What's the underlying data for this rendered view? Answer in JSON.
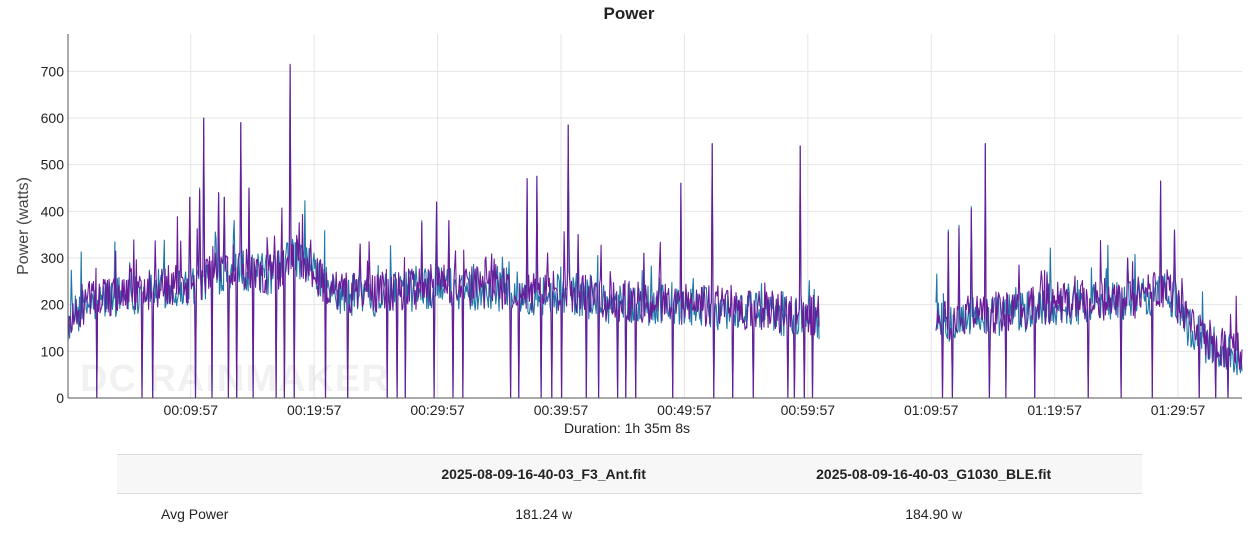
{
  "watermark": "DC RAINMAKER",
  "chart_data": {
    "type": "line",
    "title": "Power",
    "xlabel": "Duration: 1h 35m 8s",
    "ylabel": "Power (watts)",
    "x_unit": "seconds",
    "xlim": [
      0,
      5708
    ],
    "ylim": [
      0,
      780
    ],
    "y_ticks": [
      0,
      100,
      200,
      300,
      400,
      500,
      600,
      700
    ],
    "x_ticks": [
      {
        "value": 597,
        "label": "00:09:57"
      },
      {
        "value": 1197,
        "label": "00:19:57"
      },
      {
        "value": 1797,
        "label": "00:29:57"
      },
      {
        "value": 2397,
        "label": "00:39:57"
      },
      {
        "value": 2997,
        "label": "00:49:57"
      },
      {
        "value": 3597,
        "label": "00:59:57"
      },
      {
        "value": 4197,
        "label": "01:09:57"
      },
      {
        "value": 4797,
        "label": "01:19:57"
      },
      {
        "value": 5397,
        "label": "01:29:57"
      }
    ],
    "grid": true,
    "legend": "none",
    "series": [
      {
        "color": "#1f77a8",
        "segments": [
          {
            "x_start": 0,
            "x_end": 3655
          },
          {
            "x_start": 4220,
            "x_end": 5708
          }
        ],
        "baseline": [
          [
            0,
            160
          ],
          [
            100,
            200
          ],
          [
            250,
            220
          ],
          [
            400,
            230
          ],
          [
            600,
            240
          ],
          [
            800,
            280
          ],
          [
            1000,
            260
          ],
          [
            1100,
            310
          ],
          [
            1300,
            220
          ],
          [
            1500,
            220
          ],
          [
            1700,
            230
          ],
          [
            1800,
            240
          ],
          [
            1900,
            235
          ],
          [
            2100,
            230
          ],
          [
            2300,
            220
          ],
          [
            2450,
            225
          ],
          [
            2600,
            205
          ],
          [
            2800,
            200
          ],
          [
            3000,
            195
          ],
          [
            3200,
            190
          ],
          [
            3400,
            180
          ],
          [
            3600,
            175
          ],
          [
            3655,
            170
          ]
        ],
        "baseline2": [
          [
            4220,
            160
          ],
          [
            4400,
            175
          ],
          [
            4600,
            180
          ],
          [
            4800,
            200
          ],
          [
            5000,
            205
          ],
          [
            5200,
            210
          ],
          [
            5350,
            230
          ],
          [
            5450,
            150
          ],
          [
            5550,
            110
          ],
          [
            5708,
            90
          ]
        ],
        "peaks": [
          [
            300,
            290
          ],
          [
            590,
            430
          ],
          [
            640,
            450
          ],
          [
            660,
            600
          ],
          [
            730,
            440
          ],
          [
            760,
            430
          ],
          [
            840,
            590
          ],
          [
            880,
            450
          ],
          [
            900,
            470
          ],
          [
            1080,
            710
          ],
          [
            1420,
            330
          ],
          [
            1720,
            380
          ],
          [
            1790,
            420
          ],
          [
            1850,
            380
          ],
          [
            2230,
            470
          ],
          [
            2280,
            475
          ],
          [
            2430,
            585
          ],
          [
            2480,
            350
          ],
          [
            2800,
            310
          ],
          [
            2980,
            460
          ],
          [
            3130,
            545
          ],
          [
            3560,
            540
          ],
          [
            4280,
            360
          ],
          [
            4330,
            370
          ],
          [
            4390,
            410
          ],
          [
            4460,
            545
          ],
          [
            4760,
            270
          ],
          [
            5150,
            300
          ],
          [
            5310,
            465
          ],
          [
            5380,
            360
          ]
        ],
        "drops": [
          [
            140,
            0
          ],
          [
            360,
            0
          ],
          [
            410,
            0
          ],
          [
            620,
            0
          ],
          [
            700,
            0
          ],
          [
            780,
            0
          ],
          [
            820,
            0
          ],
          [
            900,
            0
          ],
          [
            1010,
            0
          ],
          [
            1050,
            0
          ],
          [
            1100,
            0
          ],
          [
            1250,
            0
          ],
          [
            1360,
            0
          ],
          [
            1550,
            0
          ],
          [
            1600,
            0
          ],
          [
            1640,
            0
          ],
          [
            1780,
            0
          ],
          [
            1870,
            0
          ],
          [
            1920,
            0
          ],
          [
            2150,
            0
          ],
          [
            2190,
            0
          ],
          [
            2300,
            0
          ],
          [
            2350,
            0
          ],
          [
            2400,
            0
          ],
          [
            2520,
            0
          ],
          [
            2580,
            0
          ],
          [
            2670,
            0
          ],
          [
            2710,
            0
          ],
          [
            2760,
            0
          ],
          [
            2940,
            0
          ],
          [
            3140,
            0
          ],
          [
            3230,
            0
          ],
          [
            3330,
            0
          ],
          [
            3500,
            0
          ],
          [
            3530,
            0
          ],
          [
            3580,
            0
          ],
          [
            3620,
            0
          ],
          [
            4250,
            0
          ],
          [
            4300,
            0
          ],
          [
            4480,
            0
          ],
          [
            4560,
            0
          ],
          [
            4700,
            0
          ],
          [
            4960,
            0
          ],
          [
            5120,
            0
          ],
          [
            5270,
            0
          ],
          [
            5500,
            0
          ],
          [
            5580,
            0
          ],
          [
            5640,
            0
          ]
        ]
      },
      {
        "color": "#6a1b9a",
        "segments": [
          {
            "x_start": 0,
            "x_end": 3655
          },
          {
            "x_start": 4220,
            "x_end": 5708
          }
        ],
        "baseline": [
          [
            0,
            165
          ],
          [
            100,
            205
          ],
          [
            250,
            225
          ],
          [
            400,
            235
          ],
          [
            600,
            245
          ],
          [
            800,
            285
          ],
          [
            1000,
            265
          ],
          [
            1100,
            315
          ],
          [
            1300,
            225
          ],
          [
            1500,
            225
          ],
          [
            1700,
            235
          ],
          [
            1800,
            245
          ],
          [
            1900,
            240
          ],
          [
            2100,
            235
          ],
          [
            2300,
            225
          ],
          [
            2450,
            230
          ],
          [
            2600,
            210
          ],
          [
            2800,
            205
          ],
          [
            3000,
            200
          ],
          [
            3200,
            195
          ],
          [
            3400,
            185
          ],
          [
            3600,
            180
          ],
          [
            3655,
            175
          ]
        ],
        "baseline2": [
          [
            4220,
            165
          ],
          [
            4400,
            180
          ],
          [
            4600,
            185
          ],
          [
            4800,
            205
          ],
          [
            5000,
            210
          ],
          [
            5200,
            215
          ],
          [
            5350,
            235
          ],
          [
            5450,
            155
          ],
          [
            5550,
            115
          ],
          [
            5708,
            95
          ]
        ],
        "peaks": [
          [
            300,
            285
          ],
          [
            590,
            430
          ],
          [
            640,
            445
          ],
          [
            660,
            600
          ],
          [
            730,
            440
          ],
          [
            760,
            430
          ],
          [
            840,
            590
          ],
          [
            880,
            450
          ],
          [
            900,
            465
          ],
          [
            1080,
            715
          ],
          [
            1420,
            330
          ],
          [
            1720,
            375
          ],
          [
            1790,
            420
          ],
          [
            1850,
            380
          ],
          [
            2230,
            470
          ],
          [
            2280,
            475
          ],
          [
            2430,
            585
          ],
          [
            2480,
            350
          ],
          [
            2800,
            310
          ],
          [
            2980,
            460
          ],
          [
            3130,
            545
          ],
          [
            3560,
            540
          ],
          [
            4280,
            355
          ],
          [
            4330,
            365
          ],
          [
            4390,
            405
          ],
          [
            4460,
            545
          ],
          [
            4760,
            265
          ],
          [
            5150,
            300
          ],
          [
            5310,
            465
          ],
          [
            5380,
            360
          ]
        ],
        "drops": [
          [
            140,
            0
          ],
          [
            360,
            0
          ],
          [
            410,
            0
          ],
          [
            620,
            0
          ],
          [
            700,
            0
          ],
          [
            780,
            0
          ],
          [
            820,
            0
          ],
          [
            900,
            0
          ],
          [
            1010,
            0
          ],
          [
            1050,
            0
          ],
          [
            1100,
            0
          ],
          [
            1250,
            0
          ],
          [
            1360,
            0
          ],
          [
            1550,
            0
          ],
          [
            1600,
            0
          ],
          [
            1640,
            0
          ],
          [
            1780,
            0
          ],
          [
            1870,
            0
          ],
          [
            1920,
            0
          ],
          [
            2150,
            0
          ],
          [
            2190,
            0
          ],
          [
            2300,
            0
          ],
          [
            2350,
            0
          ],
          [
            2400,
            0
          ],
          [
            2520,
            0
          ],
          [
            2580,
            0
          ],
          [
            2670,
            0
          ],
          [
            2710,
            0
          ],
          [
            2760,
            0
          ],
          [
            2940,
            0
          ],
          [
            3140,
            0
          ],
          [
            3230,
            0
          ],
          [
            3330,
            0
          ],
          [
            3500,
            0
          ],
          [
            3530,
            0
          ],
          [
            3580,
            0
          ],
          [
            3620,
            0
          ],
          [
            4250,
            0
          ],
          [
            4300,
            0
          ],
          [
            4480,
            0
          ],
          [
            4560,
            0
          ],
          [
            4700,
            0
          ],
          [
            4960,
            0
          ],
          [
            5120,
            0
          ],
          [
            5270,
            0
          ],
          [
            5500,
            0
          ],
          [
            5580,
            0
          ],
          [
            5640,
            0
          ]
        ]
      }
    ]
  },
  "stats": {
    "headers": [
      "",
      "2025-08-09-16-40-03_F3_Ant.fit",
      "2025-08-09-16-40-03_G1030_BLE.fit"
    ],
    "rows": [
      {
        "label": "Avg Power",
        "values": [
          "181.24 w",
          "184.90 w"
        ]
      }
    ]
  }
}
